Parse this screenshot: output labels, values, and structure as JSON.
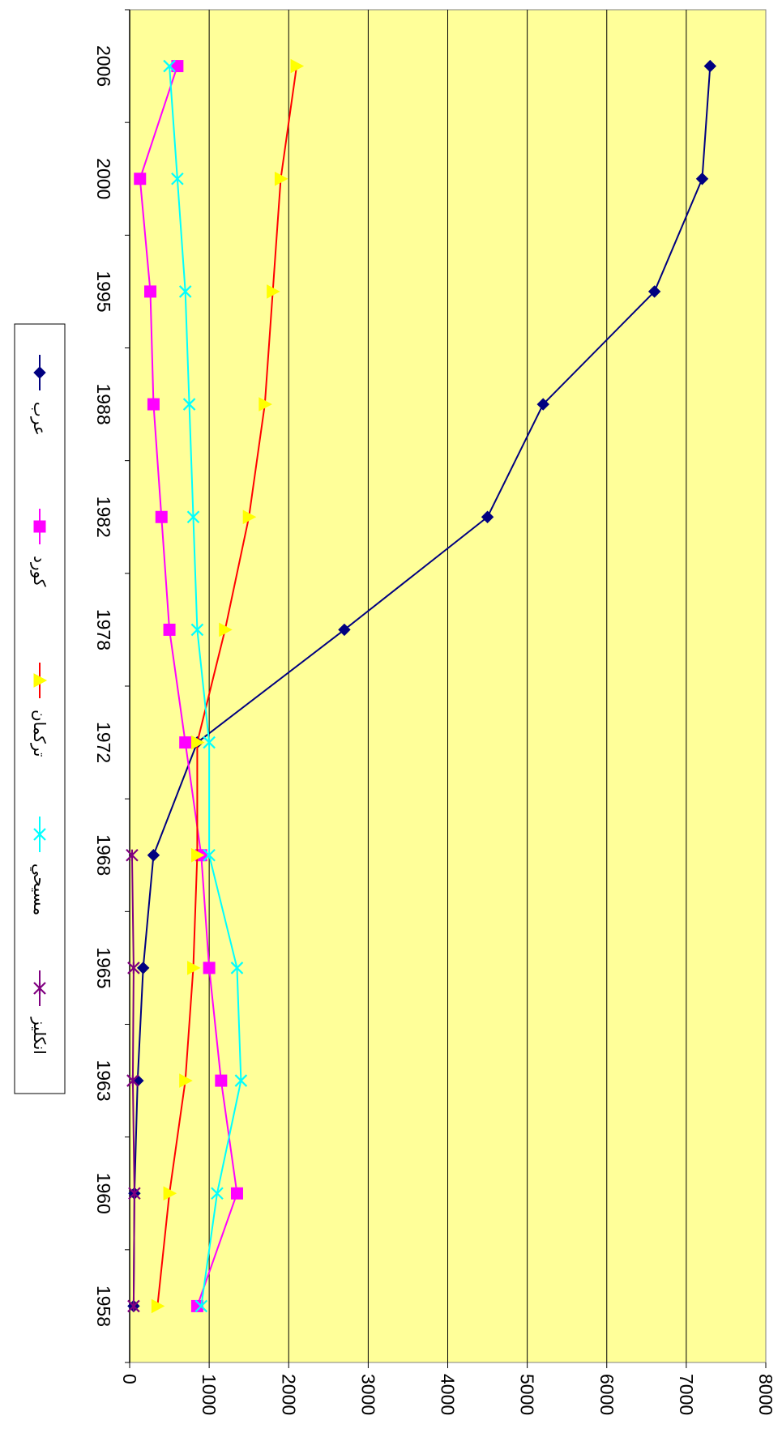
{
  "chart_data": {
    "type": "line",
    "title": "",
    "xlabel": "",
    "ylabel": "",
    "categories": [
      "1958",
      "1960",
      "1963",
      "1965",
      "1968",
      "1972",
      "1978",
      "1982",
      "1988",
      "1995",
      "2000",
      "2006"
    ],
    "ylim": [
      0,
      8000
    ],
    "yticks": [
      "0",
      "1000",
      "2000",
      "3000",
      "4000",
      "5000",
      "6000",
      "7000",
      "8000"
    ],
    "grid": true,
    "plot_background": "#FFFF99",
    "orientation": "rotated-90-clockwise",
    "legend_position": "left",
    "series": [
      {
        "name": "عرب",
        "color": "#000080",
        "marker": "diamond",
        "values": [
          50,
          60,
          100,
          170,
          300,
          850,
          2700,
          4500,
          5200,
          6600,
          7200,
          7300
        ]
      },
      {
        "name": "كورد",
        "color": "#FF00FF",
        "marker": "square",
        "values": [
          850,
          1350,
          1150,
          1000,
          900,
          700,
          500,
          400,
          300,
          260,
          130,
          600
        ]
      },
      {
        "name": "تركمان",
        "color": "#FF0000",
        "marker": "triangle",
        "marker_color": "#FFFF00",
        "values": [
          350,
          500,
          700,
          800,
          850,
          850,
          1200,
          1500,
          1700,
          1800,
          1900,
          2100
        ]
      },
      {
        "name": "مسيحي",
        "color": "#00FFFF",
        "marker": "x",
        "values": [
          900,
          1100,
          1400,
          1350,
          1000,
          1000,
          850,
          800,
          750,
          700,
          600,
          500
        ]
      },
      {
        "name": "انكليز",
        "color": "#800080",
        "marker": "star",
        "values": [
          50,
          60,
          40,
          50,
          30,
          null,
          null,
          null,
          null,
          null,
          null,
          null
        ]
      }
    ]
  }
}
